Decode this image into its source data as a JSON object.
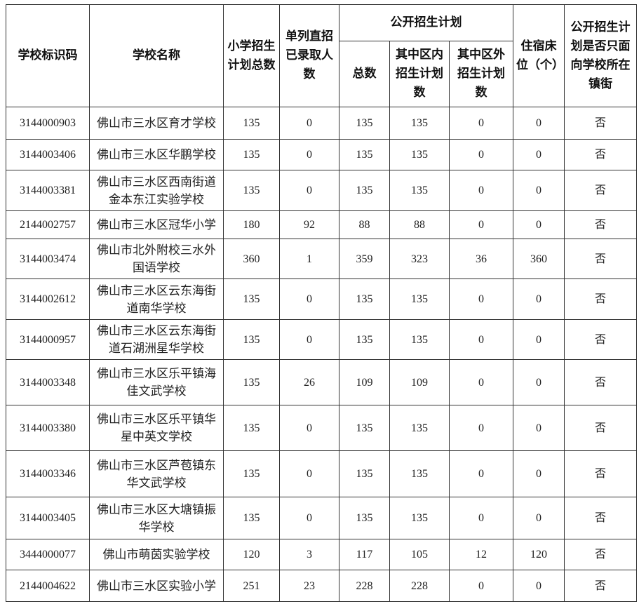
{
  "headers": {
    "school_id": "学校标识码",
    "school_name": "学校名称",
    "plan_total": "小学招生计划总数",
    "direct_admitted": "单列直招已录取人数",
    "public_plan": "公开招生计划",
    "public_total": "总数",
    "in_district": "其中区内招生计划数",
    "out_district": "其中区外招生计划数",
    "beds": "住宿床位（个）",
    "town_only": "公开招生计划是否只面向学校所在镇街"
  },
  "rows": [
    {
      "id": "3144000903",
      "name": "佛山市三水区育才学校",
      "plan_total": "135",
      "direct": "0",
      "public_total": "135",
      "in_district": "135",
      "out_district": "0",
      "beds": "0",
      "town_only": "否"
    },
    {
      "id": "3144003406",
      "name": "佛山市三水区华鹏学校",
      "plan_total": "135",
      "direct": "0",
      "public_total": "135",
      "in_district": "135",
      "out_district": "0",
      "beds": "0",
      "town_only": "否"
    },
    {
      "id": "3144003381",
      "name": "佛山市三水区西南街道金本东江实验学校",
      "plan_total": "135",
      "direct": "0",
      "public_total": "135",
      "in_district": "135",
      "out_district": "0",
      "beds": "0",
      "town_only": "否"
    },
    {
      "id": "2144002757",
      "name": "佛山市三水区冠华小学",
      "plan_total": "180",
      "direct": "92",
      "public_total": "88",
      "in_district": "88",
      "out_district": "0",
      "beds": "0",
      "town_only": "否"
    },
    {
      "id": "3144003474",
      "name": "佛山市北外附校三水外国语学校",
      "plan_total": "360",
      "direct": "1",
      "public_total": "359",
      "in_district": "323",
      "out_district": "36",
      "beds": "360",
      "town_only": "否"
    },
    {
      "id": "3144002612",
      "name": "佛山市三水区云东海街道南华学校",
      "plan_total": "135",
      "direct": "0",
      "public_total": "135",
      "in_district": "135",
      "out_district": "0",
      "beds": "0",
      "town_only": "否"
    },
    {
      "id": "3144000957",
      "name": "佛山市三水区云东海街道石湖洲星华学校",
      "plan_total": "135",
      "direct": "0",
      "public_total": "135",
      "in_district": "135",
      "out_district": "0",
      "beds": "0",
      "town_only": "否"
    },
    {
      "id": "3144003348",
      "name": "佛山市三水区乐平镇海佳文武学校",
      "plan_total": "135",
      "direct": "26",
      "public_total": "109",
      "in_district": "109",
      "out_district": "0",
      "beds": "0",
      "town_only": "否"
    },
    {
      "id": "3144003380",
      "name": "佛山市三水区乐平镇华星中英文学校",
      "plan_total": "135",
      "direct": "0",
      "public_total": "135",
      "in_district": "135",
      "out_district": "0",
      "beds": "0",
      "town_only": "否"
    },
    {
      "id": "3144003346",
      "name": "佛山市三水区芦苞镇东华文武学校",
      "plan_total": "135",
      "direct": "0",
      "public_total": "135",
      "in_district": "135",
      "out_district": "0",
      "beds": "0",
      "town_only": "否"
    },
    {
      "id": "3144003405",
      "name": "佛山市三水区大塘镇振华学校",
      "plan_total": "135",
      "direct": "0",
      "public_total": "135",
      "in_district": "135",
      "out_district": "0",
      "beds": "0",
      "town_only": "否"
    },
    {
      "id": "3444000077",
      "name": "佛山市萌茵实验学校",
      "plan_total": "120",
      "direct": "3",
      "public_total": "117",
      "in_district": "105",
      "out_district": "12",
      "beds": "120",
      "town_only": "否"
    },
    {
      "id": "2144004622",
      "name": "佛山市三水区实验小学",
      "plan_total": "251",
      "direct": "23",
      "public_total": "228",
      "in_district": "228",
      "out_district": "0",
      "beds": "0",
      "town_only": "否"
    }
  ]
}
